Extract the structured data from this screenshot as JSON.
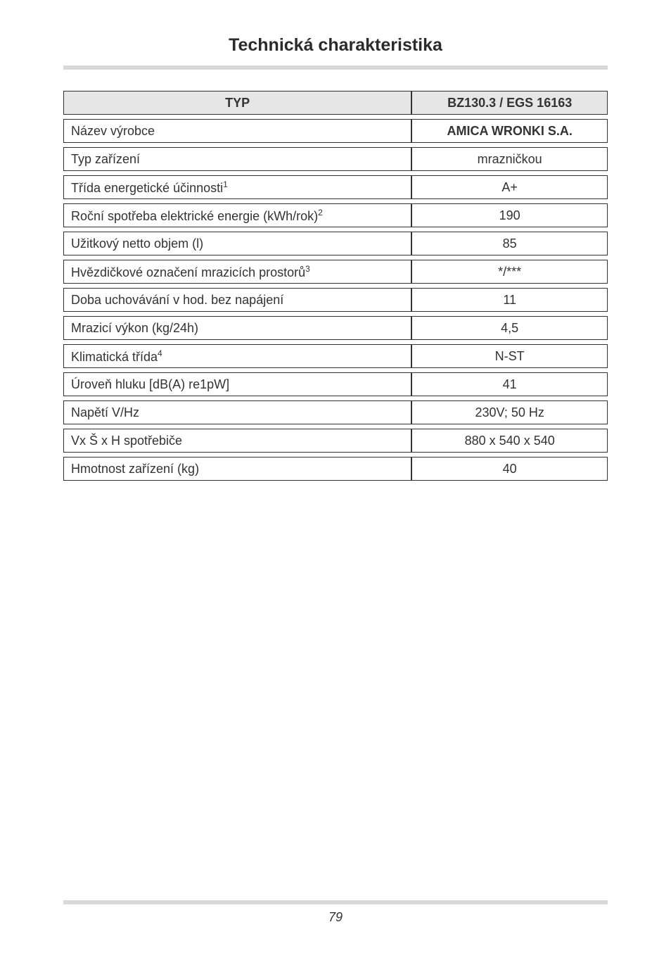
{
  "page_title": "Technická charakteristika",
  "table": {
    "header": {
      "left": "TYP",
      "right": "BZ130.3 / EGS 16163"
    },
    "rows": [
      {
        "label": "Název výrobce",
        "value": "AMICA WRONKI S.A.",
        "bold": true
      },
      {
        "label": "Typ zařízení",
        "value": "mrazničkou"
      },
      {
        "label_html": "Třída energetické účinnosti<span class=\"sup\">1</span>",
        "value": "A+"
      },
      {
        "label_html": "Roční spotřeba elektrické energie (kWh/rok)<span class=\"sup\">2</span>",
        "value": "190"
      },
      {
        "label": "Užitkový netto objem (l)",
        "value": "85"
      },
      {
        "label_html": "Hvězdičkové označení mrazicích prostorů<span class=\"sup\">3</span>",
        "value": "*/***"
      },
      {
        "label": "Doba uchovávání v hod. bez napájení",
        "value": "11"
      },
      {
        "label": "Mrazicí výkon (kg/24h)",
        "value": "4,5"
      },
      {
        "label_html": "Klimatická třída<span class=\"sup\">4</span>",
        "value": "N-ST"
      },
      {
        "label": "Úroveň hluku [dB(A) re1pW]",
        "value": "41"
      },
      {
        "label": "Napětí V/Hz",
        "value": "230V; 50 Hz"
      },
      {
        "label": "Vx Š x H spotřebiče",
        "value": "880 x 540 x 540"
      },
      {
        "label": "Hmotnost zařízení (kg)",
        "value": "40"
      }
    ]
  },
  "page_number": "79",
  "colors": {
    "bar": "#d9d9d9",
    "text": "#333333",
    "header_bg": "#e6e6e6"
  }
}
